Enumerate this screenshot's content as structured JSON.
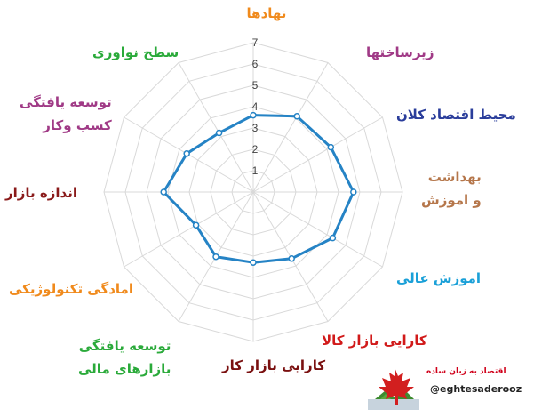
{
  "chart_data": {
    "type": "radar",
    "title": "",
    "rmax": 7,
    "ticks": [
      1,
      2,
      3,
      4,
      5,
      6,
      7
    ],
    "categories": [
      {
        "lines": [
          "نهادها"
        ],
        "color": "#f08a1c"
      },
      {
        "lines": [
          "زیرساختها"
        ],
        "color": "#a03a86"
      },
      {
        "lines": [
          "محیط اقتصاد کلان"
        ],
        "color": "#2a3d9b"
      },
      {
        "lines": [
          "بهداشت",
          "و اموزش"
        ],
        "color": "#b5764a"
      },
      {
        "lines": [
          "اموزش عالی"
        ],
        "color": "#1aa0d8"
      },
      {
        "lines": [
          "کارایی بازار کالا"
        ],
        "color": "#d11a1a"
      },
      {
        "lines": [
          "کارایی بازار کار"
        ],
        "color": "#7a1010"
      },
      {
        "lines": [
          "توسعه یافتگی",
          "بازارهای مالی"
        ],
        "color": "#2aaa3a"
      },
      {
        "lines": [
          "امادگی تکنولوژیکی"
        ],
        "color": "#f08a1c"
      },
      {
        "lines": [
          "اندازه بازار"
        ],
        "color": "#8a1a1a"
      },
      {
        "lines": [
          "توسعه یافتگی",
          "کسب وکار"
        ],
        "color": "#a03a86"
      },
      {
        "lines": [
          "سطح نواوری"
        ],
        "color": "#2aaa3a"
      }
    ],
    "series": [
      {
        "values": [
          3.6,
          4.1,
          4.2,
          4.7,
          4.3,
          3.6,
          3.3,
          3.5,
          3.1,
          4.2,
          3.6,
          3.2
        ],
        "color": "#2583c5"
      }
    ],
    "grid": true,
    "legend": "none"
  },
  "logo": {
    "title": "اقتصاد به زبان ساده",
    "handle": "@eghtesaderooz"
  }
}
